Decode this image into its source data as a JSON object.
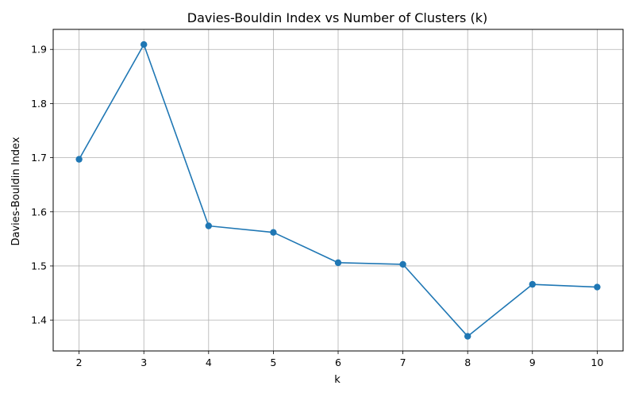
{
  "chart_data": {
    "type": "line",
    "title": "Davies-Bouldin Index vs Number of Clusters (k)",
    "xlabel": "k",
    "ylabel": "Davies-Bouldin Index",
    "x": [
      2,
      3,
      4,
      5,
      6,
      7,
      8,
      9,
      10
    ],
    "x_ticks": [
      2,
      3,
      4,
      5,
      6,
      7,
      8,
      9,
      10
    ],
    "y_ticks": [
      "1.4",
      "1.5",
      "1.6",
      "1.7",
      "1.8",
      "1.9"
    ],
    "xlim": [
      1.6,
      10.4
    ],
    "ylim": [
      1.343,
      1.937
    ],
    "grid": true,
    "marker": "circle",
    "series": [
      {
        "color": "#1f77b4",
        "values": [
          1.697,
          1.909,
          1.574,
          1.562,
          1.506,
          1.503,
          1.37,
          1.466,
          1.461
        ]
      }
    ]
  }
}
